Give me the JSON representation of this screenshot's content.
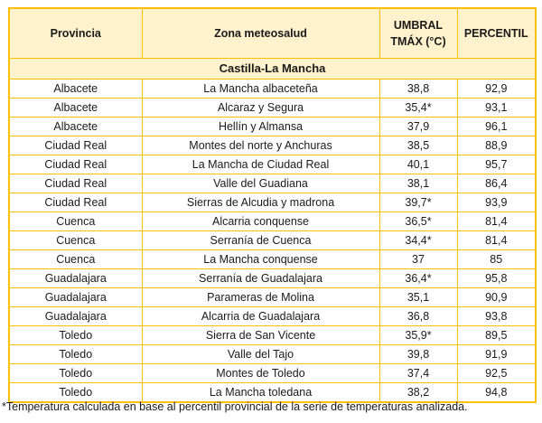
{
  "table": {
    "headers": {
      "provincia": "Provincia",
      "zona": "Zona meteosalud",
      "umbral_line1": "UMBRAL",
      "umbral_line2": "TMÁX (°C)",
      "percentil": "PERCENTIL"
    },
    "region": "Castilla-La Mancha",
    "rows": [
      {
        "provincia": "Albacete",
        "zona": "La Mancha albaceteña",
        "umbral": "38,8",
        "percentil": "92,9"
      },
      {
        "provincia": "Albacete",
        "zona": "Alcaraz y Segura",
        "umbral": "35,4*",
        "percentil": "93,1"
      },
      {
        "provincia": "Albacete",
        "zona": "Hellín y Almansa",
        "umbral": "37,9",
        "percentil": "96,1"
      },
      {
        "provincia": "Ciudad Real",
        "zona": "Montes del norte y Anchuras",
        "umbral": "38,5",
        "percentil": "88,9"
      },
      {
        "provincia": "Ciudad Real",
        "zona": "La Mancha de Ciudad Real",
        "umbral": "40,1",
        "percentil": "95,7"
      },
      {
        "provincia": "Ciudad Real",
        "zona": "Valle del Guadiana",
        "umbral": "38,1",
        "percentil": "86,4"
      },
      {
        "provincia": "Ciudad Real",
        "zona": "Sierras de Alcudia y madrona",
        "umbral": "39,7*",
        "percentil": "93,9"
      },
      {
        "provincia": "Cuenca",
        "zona": "Alcarria conquense",
        "umbral": "36,5*",
        "percentil": "81,4"
      },
      {
        "provincia": "Cuenca",
        "zona": "Serranía de Cuenca",
        "umbral": "34,4*",
        "percentil": "81,4"
      },
      {
        "provincia": "Cuenca",
        "zona": "La Mancha conquense",
        "umbral": "37",
        "percentil": "85"
      },
      {
        "provincia": "Guadalajara",
        "zona": "Serranía de Guadalajara",
        "umbral": "36,4*",
        "percentil": "95,8"
      },
      {
        "provincia": "Guadalajara",
        "zona": "Parameras de Molina",
        "umbral": "35,1",
        "percentil": "90,9"
      },
      {
        "provincia": "Guadalajara",
        "zona": "Alcarria de Guadalajara",
        "umbral": "36,8",
        "percentil": "93,8"
      },
      {
        "provincia": "Toledo",
        "zona": "Sierra de San Vicente",
        "umbral": "35,9*",
        "percentil": "89,5"
      },
      {
        "provincia": "Toledo",
        "zona": "Valle del Tajo",
        "umbral": "39,8",
        "percentil": "91,9"
      },
      {
        "provincia": "Toledo",
        "zona": "Montes de Toledo",
        "umbral": "37,4",
        "percentil": "92,5"
      },
      {
        "provincia": "Toledo",
        "zona": "La Mancha toledana",
        "umbral": "38,2",
        "percentil": "94,8"
      }
    ]
  },
  "footnote": "*Temperatura calculada en base al percentil provincial de la serie de temperaturas analizada.",
  "colors": {
    "border": "#ffc000",
    "header_fill": "#fff2cc"
  }
}
